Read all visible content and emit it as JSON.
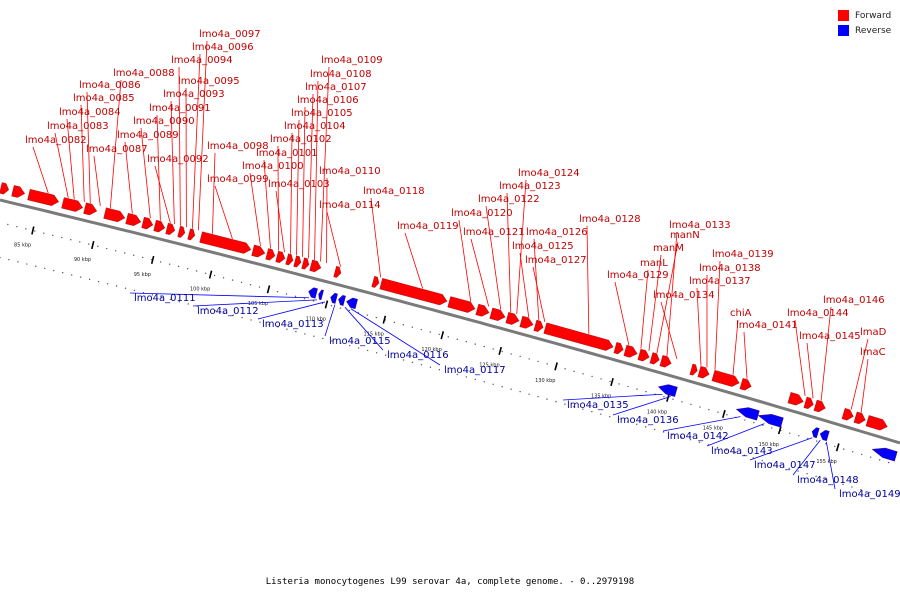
{
  "legend": {
    "forward_label": "Forward",
    "reverse_label": "Reverse",
    "forward_color": "#ff0000",
    "reverse_color": "#0000ff"
  },
  "caption": "Listeria monocytogenes L99 serovar 4a, complete genome. - 0..2979198",
  "ticks": [
    "85 kbp",
    "90 kbp",
    "95 kbp",
    "100 kbp",
    "105 kbp",
    "110 kbp",
    "115 kbp",
    "120 kbp",
    "125 kbp",
    "130 kbp",
    "135 kbp",
    "140 kbp",
    "145 kbp",
    "150 kbp",
    "155 kbp"
  ],
  "forward_genes": [
    "lmo4a_0082",
    "lmo4a_0083",
    "lmo4a_0084",
    "lmo4a_0085",
    "lmo4a_0086",
    "lmo4a_0087",
    "lmo4a_0088",
    "lmo4a_0089",
    "lmo4a_0090",
    "lmo4a_0091",
    "lmo4a_0092",
    "lmo4a_0093",
    "lmo4a_0094",
    "lmo4a_0095",
    "lmo4a_0096",
    "lmo4a_0097",
    "lmo4a_0098",
    "lmo4a_0099",
    "lmo4a_0100",
    "lmo4a_0101",
    "lmo4a_0102",
    "lmo4a_0103",
    "lmo4a_0104",
    "lmo4a_0105",
    "lmo4a_0106",
    "lmo4a_0107",
    "lmo4a_0108",
    "lmo4a_0109",
    "lmo4a_0110",
    "lmo4a_0114",
    "lmo4a_0118",
    "lmo4a_0119",
    "lmo4a_0120",
    "lmo4a_0121",
    "lmo4a_0122",
    "lmo4a_0123",
    "lmo4a_0124",
    "lmo4a_0125",
    "lmo4a_0126",
    "lmo4a_0127",
    "lmo4a_0128",
    "lmo4a_0129",
    "manL",
    "manM",
    "manN",
    "lmo4a_0133",
    "lmo4a_0134",
    "lmo4a_0137",
    "lmo4a_0138",
    "lmo4a_0139",
    "chiA",
    "lmo4a_0141",
    "lmo4a_0144",
    "lmo4a_0145",
    "lmo4a_0146",
    "lmaD",
    "lmaC"
  ],
  "reverse_genes": [
    "lmo4a_0111",
    "lmo4a_0112",
    "lmo4a_0113",
    "lmo4a_0115",
    "lmo4a_0116",
    "lmo4a_0117",
    "lmo4a_0135",
    "lmo4a_0136",
    "lmo4a_0142",
    "lmo4a_0143",
    "lmo4a_0147",
    "lmo4a_0148",
    "lmo4a_0149"
  ]
}
